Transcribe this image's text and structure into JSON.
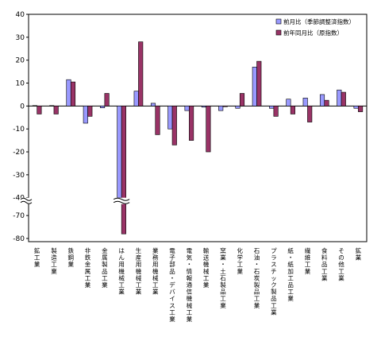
{
  "chart_data": {
    "type": "bar",
    "title": "",
    "xlabel": "",
    "ylabel": "",
    "ylim": [
      -80,
      40
    ],
    "axis_break": [
      -65,
      -40
    ],
    "yticks": [
      40,
      30,
      20,
      10,
      0,
      -10,
      -20,
      -30,
      -40,
      -70,
      -80
    ],
    "grid": false,
    "legend_position": "top-right",
    "categories": [
      "鉱工業",
      "製造工業",
      "鉄鋼業",
      "非鉄金属工業",
      "金属製品工業",
      "はん用機械工業",
      "生産用機械工業",
      "業務用機械工業",
      "電子部品・デバイス工業",
      "電気・情報通信機械工業",
      "輸送機械工業",
      "窯業・土石製品工業",
      "化学工業",
      "石油・石炭製品工業",
      "プラスチック製品工業",
      "紙・紙加工品工業",
      "繊維工業",
      "食料品工業",
      "その他工業",
      "鉱業"
    ],
    "series": [
      {
        "name": "前月比（季節調整済指数）",
        "color": "#9999ff",
        "values": [
          0.2,
          0.2,
          11.5,
          -7.5,
          -0.8,
          -40,
          6.5,
          1.2,
          -10,
          -2,
          -0.5,
          -2,
          -1,
          17,
          -1,
          3,
          3.5,
          5,
          7,
          -1
        ]
      },
      {
        "name": "前年同月比（原指数）",
        "color": "#993366",
        "values": [
          -3.5,
          -3.5,
          10.5,
          -4.5,
          5.5,
          -78,
          28,
          -12.5,
          -17,
          -15,
          -20,
          -0.3,
          5.5,
          19.5,
          -4.5,
          -3.5,
          -7,
          2.5,
          6,
          -2.5
        ]
      }
    ]
  }
}
